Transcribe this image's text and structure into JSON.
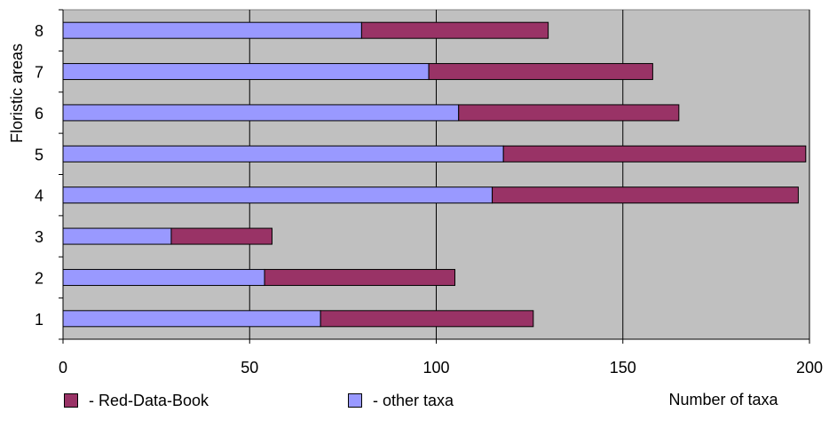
{
  "chart_data": {
    "type": "bar",
    "orientation": "horizontal",
    "stacked": true,
    "categories": [
      "1",
      "2",
      "3",
      "4",
      "5",
      "6",
      "7",
      "8"
    ],
    "series": [
      {
        "name": "- other taxa",
        "color": "#9999ff",
        "values": [
          69,
          54,
          29,
          115,
          118,
          106,
          98,
          80
        ]
      },
      {
        "name": "- Red-Data-Book",
        "color": "#993366",
        "values": [
          57,
          51,
          27,
          82,
          81,
          59,
          60,
          50
        ]
      }
    ],
    "xlabel": "Number of taxa",
    "ylabel": "Floristic areas",
    "xlim": [
      0,
      200
    ],
    "xticks": [
      "0",
      "50",
      "100",
      "150",
      "200"
    ],
    "grid": "vertical",
    "plot_background": "#c0c0c0",
    "legend_position": "bottom"
  },
  "legend": {
    "red_label": "- Red-Data-Book",
    "other_label": "- other taxa"
  }
}
